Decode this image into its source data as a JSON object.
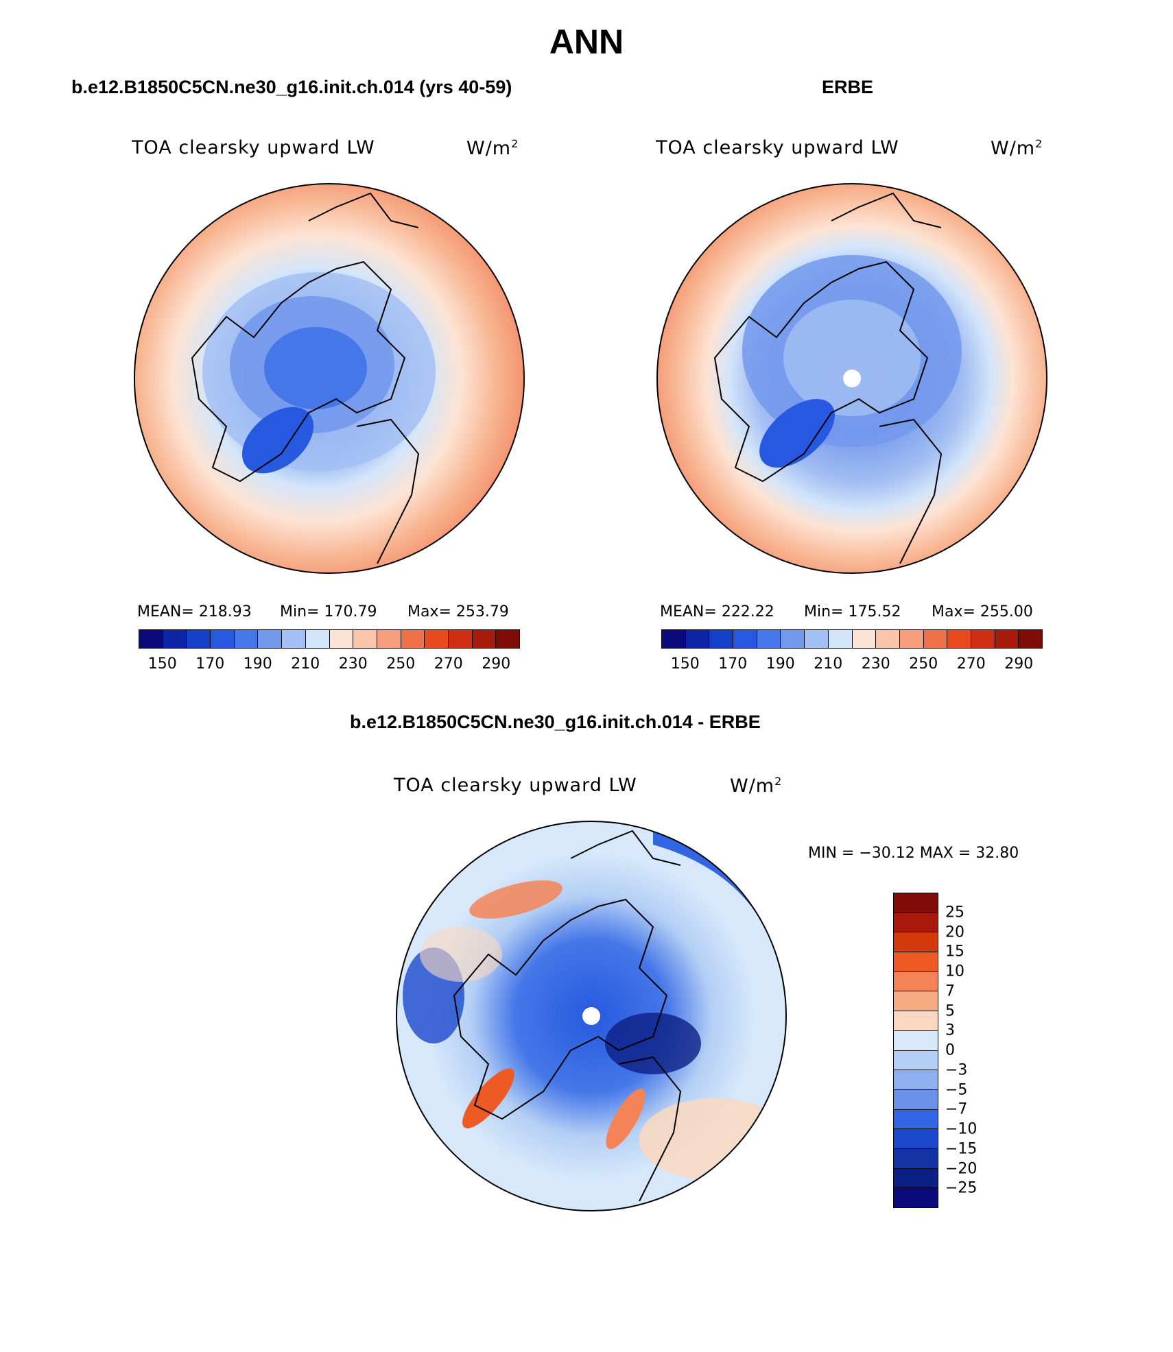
{
  "main_title": "ANN",
  "panels": {
    "model": {
      "case_title": "b.e12.B1850C5CN.ne30_g16.init.ch.014 (yrs 40-59)",
      "field": "TOA clearsky upward LW",
      "units_base": "W/m",
      "units_exp": "2",
      "mean_label": "MEAN= 218.93",
      "min_label": "Min= 170.79",
      "max_label": "Max= 253.79"
    },
    "obs": {
      "case_title": "ERBE",
      "field": "TOA clearsky upward LW",
      "units_base": "W/m",
      "units_exp": "2",
      "mean_label": "MEAN= 222.22",
      "min_label": "Min= 175.52",
      "max_label": "Max= 255.00"
    },
    "diff": {
      "case_title": "b.e12.B1850C5CN.ne30_g16.init.ch.014 - ERBE",
      "field": "TOA clearsky upward LW",
      "units_base": "W/m",
      "units_exp": "2",
      "minmax_label": "MIN = −30.12 MAX =  32.80"
    }
  },
  "colorbar_abs": {
    "colors": [
      "#0a0a7d",
      "#0d24a6",
      "#1440c8",
      "#2659e0",
      "#4677e8",
      "#7399ec",
      "#a4bff3",
      "#d3e5fa",
      "#fde3d3",
      "#fbc5ab",
      "#f59d7c",
      "#ee7148",
      "#e84a1e",
      "#cf2f10",
      "#a71a0c",
      "#7e0b06"
    ],
    "ticks": [
      "150",
      "170",
      "190",
      "210",
      "230",
      "250",
      "270",
      "290"
    ]
  },
  "colorbar_diff": {
    "colors": [
      "#7e0b06",
      "#a71a0c",
      "#d33a0e",
      "#ee5a24",
      "#f48457",
      "#f8ab83",
      "#fcd8c0",
      "#d6e8fa",
      "#b4cff5",
      "#8fb0ee",
      "#6a91e8",
      "#3265e2",
      "#1c48cc",
      "#1434a6",
      "#0c1f85",
      "#0a0a7d"
    ],
    "ticks": [
      "25",
      "20",
      "15",
      "10",
      "7",
      "5",
      "3",
      "0",
      "−3",
      "−5",
      "−7",
      "−10",
      "−15",
      "−20",
      "−25"
    ]
  },
  "map_data": {
    "projection": "north-polar-stereographic",
    "region": "Northern high latitudes (Arctic)",
    "model_range": [
      170.79,
      253.79
    ],
    "obs_range": [
      175.52,
      255.0
    ],
    "diff_range": [
      -30.12,
      32.8
    ]
  }
}
